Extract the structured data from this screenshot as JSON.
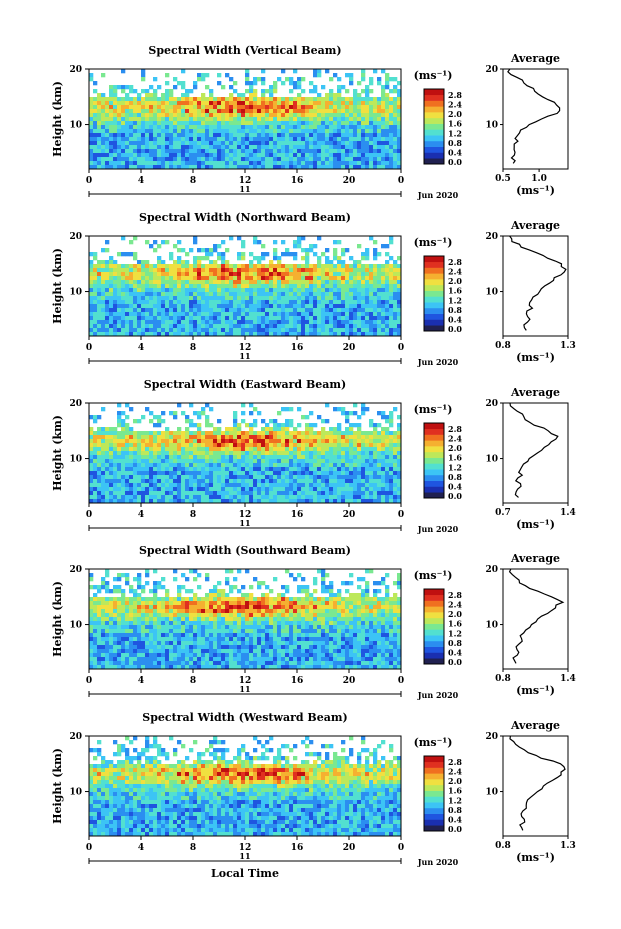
{
  "colors": {
    "scale": [
      "#202050",
      "#1a2fb0",
      "#1f55e0",
      "#2b8ef0",
      "#3cc4f5",
      "#52e0d0",
      "#7ae890",
      "#bde85a",
      "#f0e040",
      "#f5b030",
      "#f07020",
      "#e03020",
      "#c01010"
    ]
  },
  "figure": {
    "colorbar_unit": "(ms⁻¹)",
    "colorbar_ticks": [
      "2.8",
      "2.4",
      "2.0",
      "1.6",
      "1.2",
      "0.8",
      "0.4",
      "0.0"
    ],
    "x_ticks": [
      "0",
      "4",
      "8",
      "12",
      "16",
      "20",
      "0"
    ],
    "day_label": "11",
    "month_year": "Jun 2020",
    "avg_title": "Average",
    "avg_xlabel": "(ms⁻¹)",
    "ylabel": "Height (km)",
    "y_ticks": [
      "20",
      "10"
    ],
    "xlabel": "Local Time"
  },
  "chart_data": [
    {
      "type": "heatmap",
      "title": "Spectral Width (Vertical Beam)",
      "xlabel": "",
      "ylabel": "Height (km)",
      "x_range": [
        0,
        24
      ],
      "y_range": [
        2,
        20
      ],
      "color_range": [
        0.0,
        2.8
      ],
      "profile": {
        "x_ticks": [
          "0.5",
          "1.0"
        ],
        "x_range": [
          0.5,
          1.4
        ],
        "height": [
          3,
          4,
          5,
          6,
          7,
          8,
          9,
          10,
          11,
          12,
          13,
          14,
          15,
          16,
          17,
          18,
          19,
          20
        ],
        "value": [
          0.65,
          0.62,
          0.68,
          0.66,
          0.7,
          0.68,
          0.75,
          0.85,
          1.05,
          1.25,
          1.3,
          1.2,
          1.05,
          0.95,
          0.85,
          0.75,
          0.62,
          0.58
        ]
      }
    },
    {
      "type": "heatmap",
      "title": "Spectral Width (Northward Beam)",
      "xlabel": "",
      "ylabel": "Height (km)",
      "x_range": [
        0,
        24
      ],
      "y_range": [
        2,
        20
      ],
      "color_range": [
        0.0,
        2.8
      ],
      "profile": {
        "x_ticks": [
          "0.8",
          "1.3"
        ],
        "x_range": [
          0.8,
          1.3
        ],
        "height": [
          3,
          4,
          5,
          6,
          7,
          8,
          9,
          10,
          11,
          12,
          13,
          14,
          15,
          16,
          17,
          18,
          19,
          20
        ],
        "value": [
          0.98,
          0.96,
          1.0,
          0.97,
          1.02,
          1.0,
          1.04,
          1.07,
          1.12,
          1.18,
          1.24,
          1.28,
          1.25,
          1.15,
          1.05,
          0.95,
          0.88,
          0.84
        ]
      }
    },
    {
      "type": "heatmap",
      "title": "Spectral Width (Eastward Beam)",
      "xlabel": "",
      "ylabel": "Height (km)",
      "x_range": [
        0,
        24
      ],
      "y_range": [
        2,
        20
      ],
      "color_range": [
        0.0,
        2.8
      ],
      "profile": {
        "x_ticks": [
          "0.7",
          "1.4"
        ],
        "x_range": [
          0.7,
          1.4
        ],
        "height": [
          3,
          4,
          5,
          6,
          7,
          8,
          9,
          10,
          11,
          12,
          13,
          14,
          15,
          16,
          17,
          18,
          19,
          20
        ],
        "value": [
          0.86,
          0.84,
          0.88,
          0.85,
          0.9,
          0.88,
          0.92,
          0.98,
          1.06,
          1.14,
          1.22,
          1.28,
          1.2,
          1.05,
          0.95,
          0.9,
          0.8,
          0.78
        ]
      }
    },
    {
      "type": "heatmap",
      "title": "Spectral Width (Southward Beam)",
      "xlabel": "",
      "ylabel": "Height (km)",
      "x_range": [
        0,
        24
      ],
      "y_range": [
        2,
        20
      ],
      "color_range": [
        0.0,
        2.8
      ],
      "profile": {
        "x_ticks": [
          "0.8",
          "1.4"
        ],
        "x_range": [
          0.8,
          1.4
        ],
        "height": [
          3,
          4,
          5,
          6,
          7,
          8,
          9,
          10,
          11,
          12,
          13,
          14,
          15,
          16,
          17,
          18,
          19,
          20
        ],
        "value": [
          0.92,
          0.9,
          0.95,
          0.92,
          0.98,
          0.96,
          1.0,
          1.05,
          1.12,
          1.2,
          1.28,
          1.34,
          1.26,
          1.12,
          1.0,
          0.94,
          0.88,
          0.86
        ]
      }
    },
    {
      "type": "heatmap",
      "title": "Spectral Width (Westward Beam)",
      "xlabel": "Local Time",
      "ylabel": "Height (km)",
      "x_range": [
        0,
        24
      ],
      "y_range": [
        2,
        20
      ],
      "color_range": [
        0.0,
        2.8
      ],
      "profile": {
        "x_ticks": [
          "0.8",
          "1.3"
        ],
        "x_range": [
          0.8,
          1.3
        ],
        "height": [
          3,
          4,
          5,
          6,
          7,
          8,
          9,
          10,
          11,
          12,
          13,
          14,
          15,
          16,
          17,
          18,
          19,
          20
        ],
        "value": [
          0.95,
          0.93,
          0.97,
          0.94,
          0.99,
          0.97,
          1.01,
          1.06,
          1.12,
          1.18,
          1.24,
          1.28,
          1.24,
          1.1,
          1.0,
          0.92,
          0.88,
          0.86
        ]
      }
    }
  ]
}
